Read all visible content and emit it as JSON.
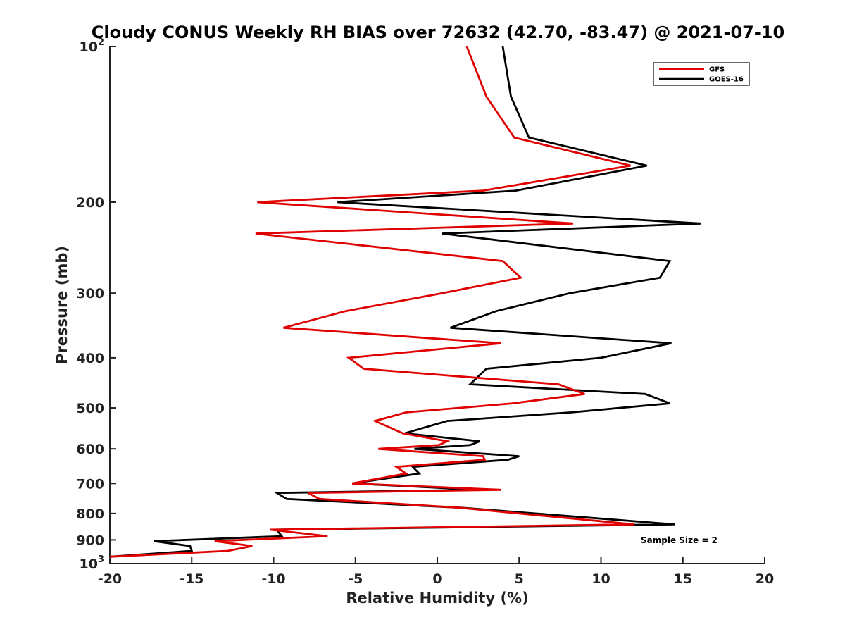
{
  "chart_data": {
    "type": "line",
    "title": "Cloudy CONUS Weekly RH BIAS over 72632 (42.70, -83.47) @ 2021-07-10",
    "xlabel": "Relative Humidity (%)",
    "ylabel": "Pressure (mb)",
    "xlim": [
      -20,
      20
    ],
    "ylim": [
      100,
      1000
    ],
    "yscale": "log",
    "y_reversed": true,
    "grid": false,
    "legend_position": "top-right",
    "x_ticks": [
      "-20",
      "-15",
      "-10",
      "-5",
      "0",
      "5",
      "10",
      "15",
      "20"
    ],
    "y_ticks": [
      {
        "value": 100,
        "base": "10",
        "exp": "2"
      },
      {
        "value": 200,
        "label": "200"
      },
      {
        "value": 300,
        "label": "300"
      },
      {
        "value": 400,
        "label": "400"
      },
      {
        "value": 500,
        "label": "500"
      },
      {
        "value": 600,
        "label": "600"
      },
      {
        "value": 700,
        "label": "700"
      },
      {
        "value": 800,
        "label": "800"
      },
      {
        "value": 900,
        "label": "900"
      },
      {
        "value": 1000,
        "base": "10",
        "exp": "3"
      }
    ],
    "series": [
      {
        "name": "GFS",
        "color": "#e00000",
        "x": [
          1.8,
          3.0,
          4.7,
          11.8,
          2.8,
          -11.0,
          8.3,
          -11.1,
          4.0,
          5.1,
          0.3,
          -5.6,
          -9.4,
          3.9,
          -5.4,
          -4.5,
          7.4,
          9.0,
          4.6,
          -1.9,
          -3.8,
          -2.1,
          0.6,
          0.1,
          -3.6,
          2.8,
          2.9,
          -2.5,
          -1.9,
          -5.2,
          3.9,
          -7.9,
          -7.2,
          1.4,
          12.0,
          -10.2,
          -6.7,
          -13.6,
          -11.3,
          -12.8,
          -20.0
        ],
        "y": [
          100,
          125,
          150,
          170,
          190,
          200,
          220,
          230,
          260,
          280,
          300,
          325,
          350,
          375,
          400,
          420,
          450,
          470,
          490,
          510,
          530,
          560,
          580,
          590,
          600,
          620,
          630,
          650,
          670,
          700,
          720,
          730,
          750,
          780,
          840,
          860,
          885,
          905,
          925,
          945,
          970
        ]
      },
      {
        "name": "GOES-16",
        "color": "#000000",
        "x": [
          4.0,
          4.5,
          5.6,
          12.8,
          4.8,
          -6.1,
          16.1,
          0.3,
          14.2,
          13.6,
          8.1,
          3.6,
          0.8,
          14.3,
          10.0,
          3.0,
          2.0,
          12.7,
          14.2,
          8.2,
          0.6,
          -2.0,
          2.6,
          2.0,
          -1.4,
          5.0,
          4.3,
          -1.5,
          -1.1,
          -5.2,
          2.6,
          -9.8,
          -9.2,
          1.5,
          14.5,
          -9.8,
          -9.5,
          -17.3,
          -15.1,
          -15.0,
          -20.0
        ],
        "y": [
          100,
          125,
          150,
          170,
          190,
          200,
          220,
          230,
          260,
          280,
          300,
          325,
          350,
          375,
          400,
          420,
          450,
          470,
          490,
          510,
          530,
          560,
          580,
          590,
          600,
          620,
          630,
          650,
          670,
          700,
          720,
          730,
          750,
          780,
          840,
          860,
          885,
          905,
          925,
          945,
          970
        ]
      }
    ],
    "annotations": [
      "Sample Size = 2"
    ]
  }
}
